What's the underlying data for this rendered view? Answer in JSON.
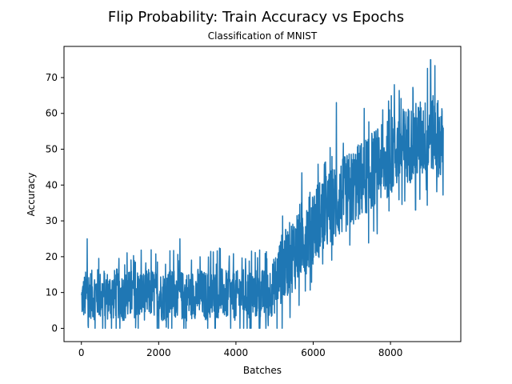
{
  "chart_data": {
    "type": "line",
    "title": "Flip Probability: Train Accuracy vs Epochs",
    "subtitle": "Classification of MNIST",
    "xlabel": "Batches",
    "ylabel": "Accuracy",
    "xlim": [
      -450,
      9820
    ],
    "ylim": [
      -3.7,
      78.7
    ],
    "xticks": [
      0,
      2000,
      4000,
      6000,
      8000
    ],
    "yticks": [
      0,
      10,
      20,
      30,
      40,
      50,
      60,
      70
    ],
    "color": "#1f77b4",
    "grid": false,
    "series": [
      {
        "x": [
          0,
          100,
          200,
          300,
          400,
          500,
          600,
          700,
          800,
          900,
          1000,
          1200,
          1400,
          1600,
          1800,
          2000,
          2200,
          2400,
          2600,
          2800,
          3000,
          3200,
          3400,
          3600,
          3800,
          4000,
          4200,
          4400,
          4600,
          4800,
          5000,
          5100,
          5200,
          5300,
          5400,
          5500,
          5600,
          5700,
          5800,
          5900,
          6000,
          6200,
          6400,
          6600,
          6800,
          7000,
          7200,
          7400,
          7600,
          7800,
          8000,
          8200,
          8400,
          8600,
          8800,
          9000,
          9100,
          9200,
          9300,
          9370
        ],
        "y": [
          8,
          9,
          10,
          9,
          10,
          9,
          10,
          9,
          9,
          10,
          9,
          9,
          10,
          9,
          10,
          9,
          9,
          10,
          9,
          9,
          10,
          9,
          9,
          10,
          9,
          9,
          10,
          9,
          10,
          9,
          12,
          15,
          17,
          18,
          20,
          21,
          23,
          25,
          26,
          27,
          29,
          31,
          33,
          35,
          37,
          39,
          41,
          43,
          45,
          46,
          48,
          50,
          51,
          52,
          53,
          53,
          54,
          54,
          52,
          51
        ],
        "spread": [
          5,
          7,
          7,
          7,
          7,
          7,
          7,
          7,
          7,
          7,
          7,
          7,
          7,
          7,
          7,
          7,
          7,
          7,
          7,
          7,
          7,
          7,
          7,
          7,
          7,
          7,
          7,
          7,
          7,
          7,
          8,
          9,
          10,
          10,
          10,
          11,
          11,
          11,
          11,
          11,
          11,
          11,
          11,
          11,
          11,
          11,
          11,
          11,
          11,
          11,
          11,
          11,
          11,
          11,
          11,
          11,
          11,
          11,
          11,
          10
        ],
        "max_spikes": [
          [
            150,
            25
          ],
          [
            2550,
            25
          ],
          [
            6600,
            63
          ],
          [
            7800,
            61
          ],
          [
            8100,
            68
          ],
          [
            9040,
            75
          ]
        ],
        "min_spikes": [
          [
            2000,
            0
          ],
          [
            4200,
            0
          ],
          [
            5400,
            3
          ],
          [
            8650,
            33
          ]
        ]
      }
    ]
  }
}
